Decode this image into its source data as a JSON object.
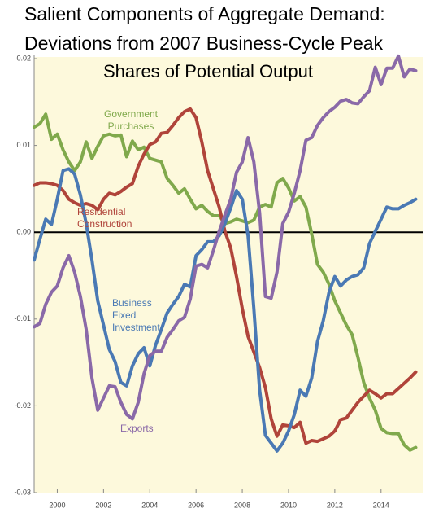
{
  "chart_data": {
    "type": "line",
    "title": [
      "Salient Components of Aggregate Demand:",
      "Deviations from 2007 Business-Cycle Peak"
    ],
    "subtitle": "Shares of Potential Output",
    "x": [
      1999,
      1999.25,
      1999.5,
      1999.75,
      2000,
      2000.25,
      2000.5,
      2000.75,
      2001,
      2001.25,
      2001.5,
      2001.75,
      2002,
      2002.25,
      2002.5,
      2002.75,
      2003,
      2003.25,
      2003.5,
      2003.75,
      2004,
      2004.25,
      2004.5,
      2004.75,
      2005,
      2005.25,
      2005.5,
      2005.75,
      2006,
      2006.25,
      2006.5,
      2006.75,
      2007,
      2007.25,
      2007.5,
      2007.75,
      2008,
      2008.25,
      2008.5,
      2008.75,
      2009,
      2009.25,
      2009.5,
      2009.75,
      2010,
      2010.25,
      2010.5,
      2010.75,
      2011,
      2011.25,
      2011.5,
      2011.75,
      2012,
      2012.25,
      2012.5,
      2012.75,
      2013,
      2013.25,
      2013.5,
      2013.75,
      2014,
      2014.25,
      2014.5,
      2014.75,
      2015,
      2015.25,
      2015.5
    ],
    "series": [
      {
        "name": "Government Purchases",
        "color": "#80a94c",
        "values": [
          0.0121,
          0.0125,
          0.0136,
          0.0107,
          0.0113,
          0.0095,
          0.0081,
          0.0071,
          0.0081,
          0.0104,
          0.0085,
          0.0099,
          0.0111,
          0.0113,
          0.0111,
          0.0112,
          0.0087,
          0.0105,
          0.0095,
          0.0098,
          0.0085,
          0.0083,
          0.0081,
          0.0062,
          0.0054,
          0.0045,
          0.005,
          0.0038,
          0.0027,
          0.0031,
          0.0024,
          0.0019,
          0.0019,
          0.001,
          0.0012,
          0.0015,
          0.0013,
          0.0011,
          0.0014,
          0.0029,
          0.0032,
          0.0029,
          0.0057,
          0.0062,
          0.0051,
          0.0036,
          0.0041,
          0.0029,
          -0.0002,
          -0.0037,
          -0.0046,
          -0.006,
          -0.0079,
          -0.0093,
          -0.0107,
          -0.0118,
          -0.0144,
          -0.0173,
          -0.0191,
          -0.0205,
          -0.0226,
          -0.0231,
          -0.0232,
          -0.0232,
          -0.0245,
          -0.0251,
          -0.0248
        ]
      },
      {
        "name": "Residential Construction",
        "color": "#b0443a",
        "values": [
          0.0054,
          0.0057,
          0.0057,
          0.0056,
          0.0054,
          0.0048,
          0.0038,
          0.0034,
          0.0031,
          0.0033,
          0.0031,
          0.0026,
          0.0038,
          0.0045,
          0.0043,
          0.0047,
          0.0052,
          0.0056,
          0.0076,
          0.009,
          0.0101,
          0.0104,
          0.0114,
          0.0115,
          0.0123,
          0.0132,
          0.0139,
          0.0142,
          0.0132,
          0.0104,
          0.0071,
          0.005,
          0.0029,
          0.0001,
          -0.0018,
          -0.0051,
          -0.0088,
          -0.012,
          -0.0138,
          -0.0156,
          -0.0179,
          -0.0215,
          -0.0235,
          -0.0222,
          -0.0223,
          -0.0225,
          -0.0219,
          -0.0243,
          -0.024,
          -0.0241,
          -0.0238,
          -0.0235,
          -0.0229,
          -0.0216,
          -0.0214,
          -0.0205,
          -0.0196,
          -0.0189,
          -0.0182,
          -0.0186,
          -0.0191,
          -0.0186,
          -0.0186,
          -0.018,
          -0.0174,
          -0.0168,
          -0.0161
        ]
      },
      {
        "name": "Business Fixed Investment",
        "color": "#4a79b4",
        "values": [
          -0.0032,
          -0.0008,
          0.0015,
          0.0009,
          0.0038,
          0.0071,
          0.0073,
          0.0067,
          0.0043,
          0.001,
          -0.0032,
          -0.0079,
          -0.0107,
          -0.0135,
          -0.0149,
          -0.0173,
          -0.0177,
          -0.0154,
          -0.014,
          -0.0133,
          -0.0154,
          -0.013,
          -0.0112,
          -0.0093,
          -0.0083,
          -0.0074,
          -0.006,
          -0.0063,
          -0.0027,
          -0.002,
          -0.0011,
          -0.0011,
          -0.0004,
          0.001,
          0.0028,
          0.0048,
          0.0038,
          -0.0004,
          -0.0088,
          -0.0182,
          -0.0234,
          -0.0243,
          -0.0252,
          -0.0243,
          -0.0229,
          -0.021,
          -0.0182,
          -0.0189,
          -0.0168,
          -0.0126,
          -0.0102,
          -0.0069,
          -0.0051,
          -0.0062,
          -0.0055,
          -0.0051,
          -0.0049,
          -0.0041,
          -0.0013,
          0.0001,
          0.0015,
          0.0029,
          0.0027,
          0.0027,
          0.0031,
          0.0034,
          0.0038
        ]
      },
      {
        "name": "Exports",
        "color": "#8a69a8",
        "values": [
          -0.0109,
          -0.0105,
          -0.0083,
          -0.0069,
          -0.0062,
          -0.0041,
          -0.0027,
          -0.0046,
          -0.0074,
          -0.0112,
          -0.0168,
          -0.0205,
          -0.0191,
          -0.0177,
          -0.0178,
          -0.0196,
          -0.021,
          -0.0215,
          -0.0196,
          -0.0163,
          -0.0142,
          -0.0137,
          -0.0137,
          -0.0121,
          -0.0112,
          -0.0102,
          -0.0098,
          -0.0077,
          -0.0039,
          -0.0037,
          -0.0041,
          -0.0021,
          0.0001,
          0.002,
          0.0038,
          0.0069,
          0.0081,
          0.0109,
          0.0081,
          0.0022,
          -0.0074,
          -0.0076,
          -0.0046,
          0.001,
          0.0023,
          0.0045,
          0.0071,
          0.0106,
          0.0109,
          0.0123,
          0.0132,
          0.0139,
          0.0144,
          0.0151,
          0.0153,
          0.0149,
          0.0148,
          0.0156,
          0.0163,
          0.019,
          0.017,
          0.0189,
          0.0189,
          0.0203,
          0.0179,
          0.0188,
          0.0186
        ]
      }
    ],
    "annotations": [
      {
        "lines": [
          "Government",
          "Purchases"
        ],
        "color": "#80a94c"
      },
      {
        "lines": [
          "Residential",
          "Construction"
        ],
        "color": "#b0443a"
      },
      {
        "lines": [
          "Business",
          "Fixed",
          "Investment"
        ],
        "color": "#4a79b4"
      },
      {
        "lines": [
          "Exports"
        ],
        "color": "#8a69a8"
      }
    ],
    "xlim": [
      1999,
      2015.8
    ],
    "xticks": [
      2000,
      2002,
      2004,
      2006,
      2008,
      2010,
      2012,
      2014
    ],
    "ylim": [
      -0.03,
      0.02
    ],
    "yticks": [
      0.02,
      0.01,
      {
        "value": 0,
        "label": "0.00"
      },
      -0.01,
      -0.02,
      -0.03
    ],
    "grid": false
  }
}
